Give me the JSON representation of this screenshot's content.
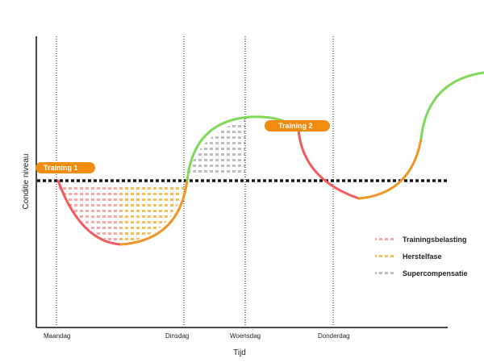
{
  "axes": {
    "x_title": "Tijd",
    "y_title": "Conditie niveau"
  },
  "days": [
    "Maandag",
    "Dinsdag",
    "Woensdag",
    "Donderdag"
  ],
  "trainings": [
    "Training 1",
    "Training 2"
  ],
  "legend": {
    "load": "Trainingsbelasting",
    "recovery": "Herstelfase",
    "supercompensation": "Supercompensatie"
  },
  "colors": {
    "load": "#f15b5b",
    "recovery": "#f29423",
    "supercompensation": "#7ed957",
    "dots_load": "#f7a8a8",
    "dots_recovery": "#f7bd5a",
    "dots_super": "#bdbdbd",
    "badge": "#f28c0f",
    "axis": "#111111"
  }
}
